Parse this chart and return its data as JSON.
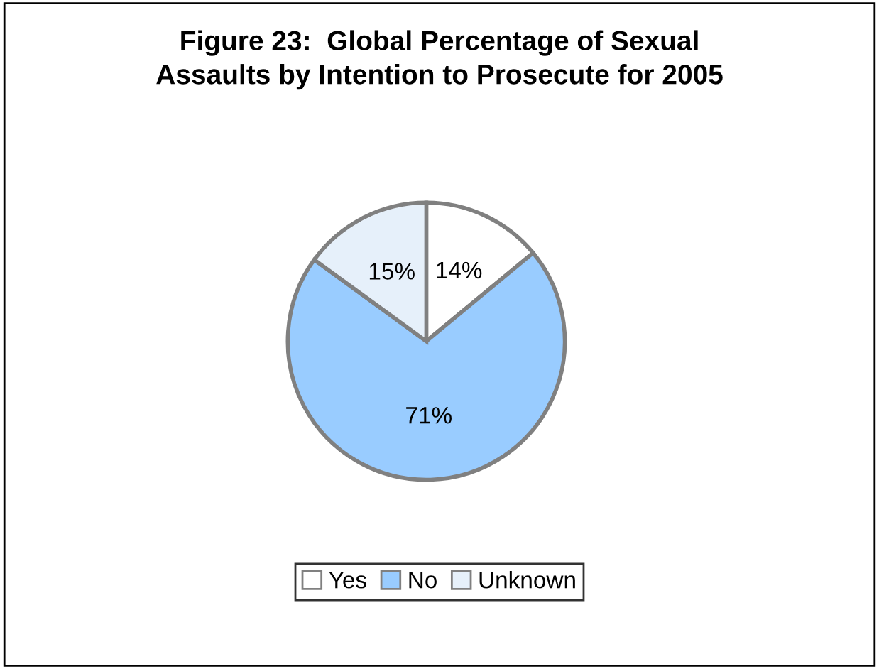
{
  "chart_data": {
    "type": "pie",
    "title": "Figure 23:  Global Percentage of Sexual\nAssaults by Intention to Prosecute for 2005",
    "categories": [
      "Yes",
      "No",
      "Unknown"
    ],
    "values": [
      14,
      71,
      15
    ],
    "value_labels": [
      "14%",
      "71%",
      "15%"
    ],
    "colors": [
      "#ffffff",
      "#99ccff",
      "#e6f0fa"
    ],
    "legend": "bottom"
  }
}
